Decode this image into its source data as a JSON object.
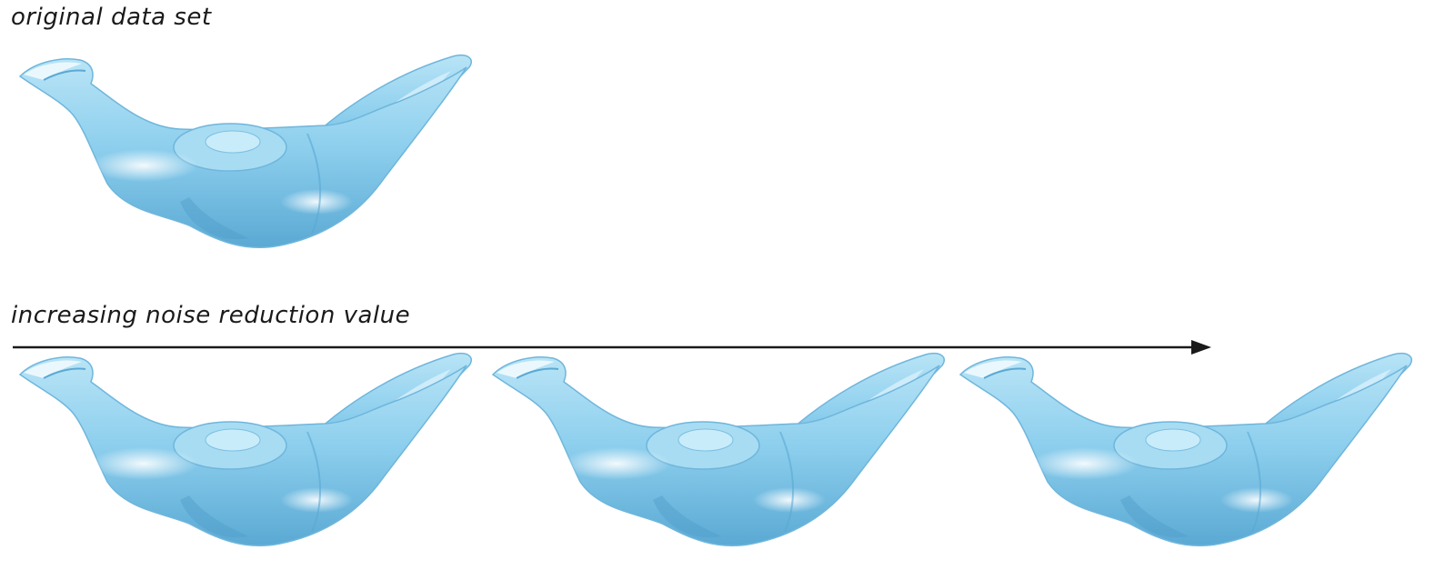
{
  "labels": {
    "original": "original data set",
    "increasing": "increasing noise reduction value"
  },
  "colors": {
    "shape_fill": "#8fd0ee",
    "shape_dark": "#5aa9d4",
    "shape_highlight": "#e6f6fd",
    "arrow": "#1a1a1a"
  },
  "icons": {
    "arrow": "right-arrow-icon",
    "shape": "bird-shaped-3d-surface"
  },
  "figures": [
    {
      "role": "original",
      "smoothing_rank": 0
    },
    {
      "role": "noise-reduced",
      "smoothing_rank": 1
    },
    {
      "role": "noise-reduced",
      "smoothing_rank": 2
    },
    {
      "role": "noise-reduced",
      "smoothing_rank": 3
    }
  ]
}
